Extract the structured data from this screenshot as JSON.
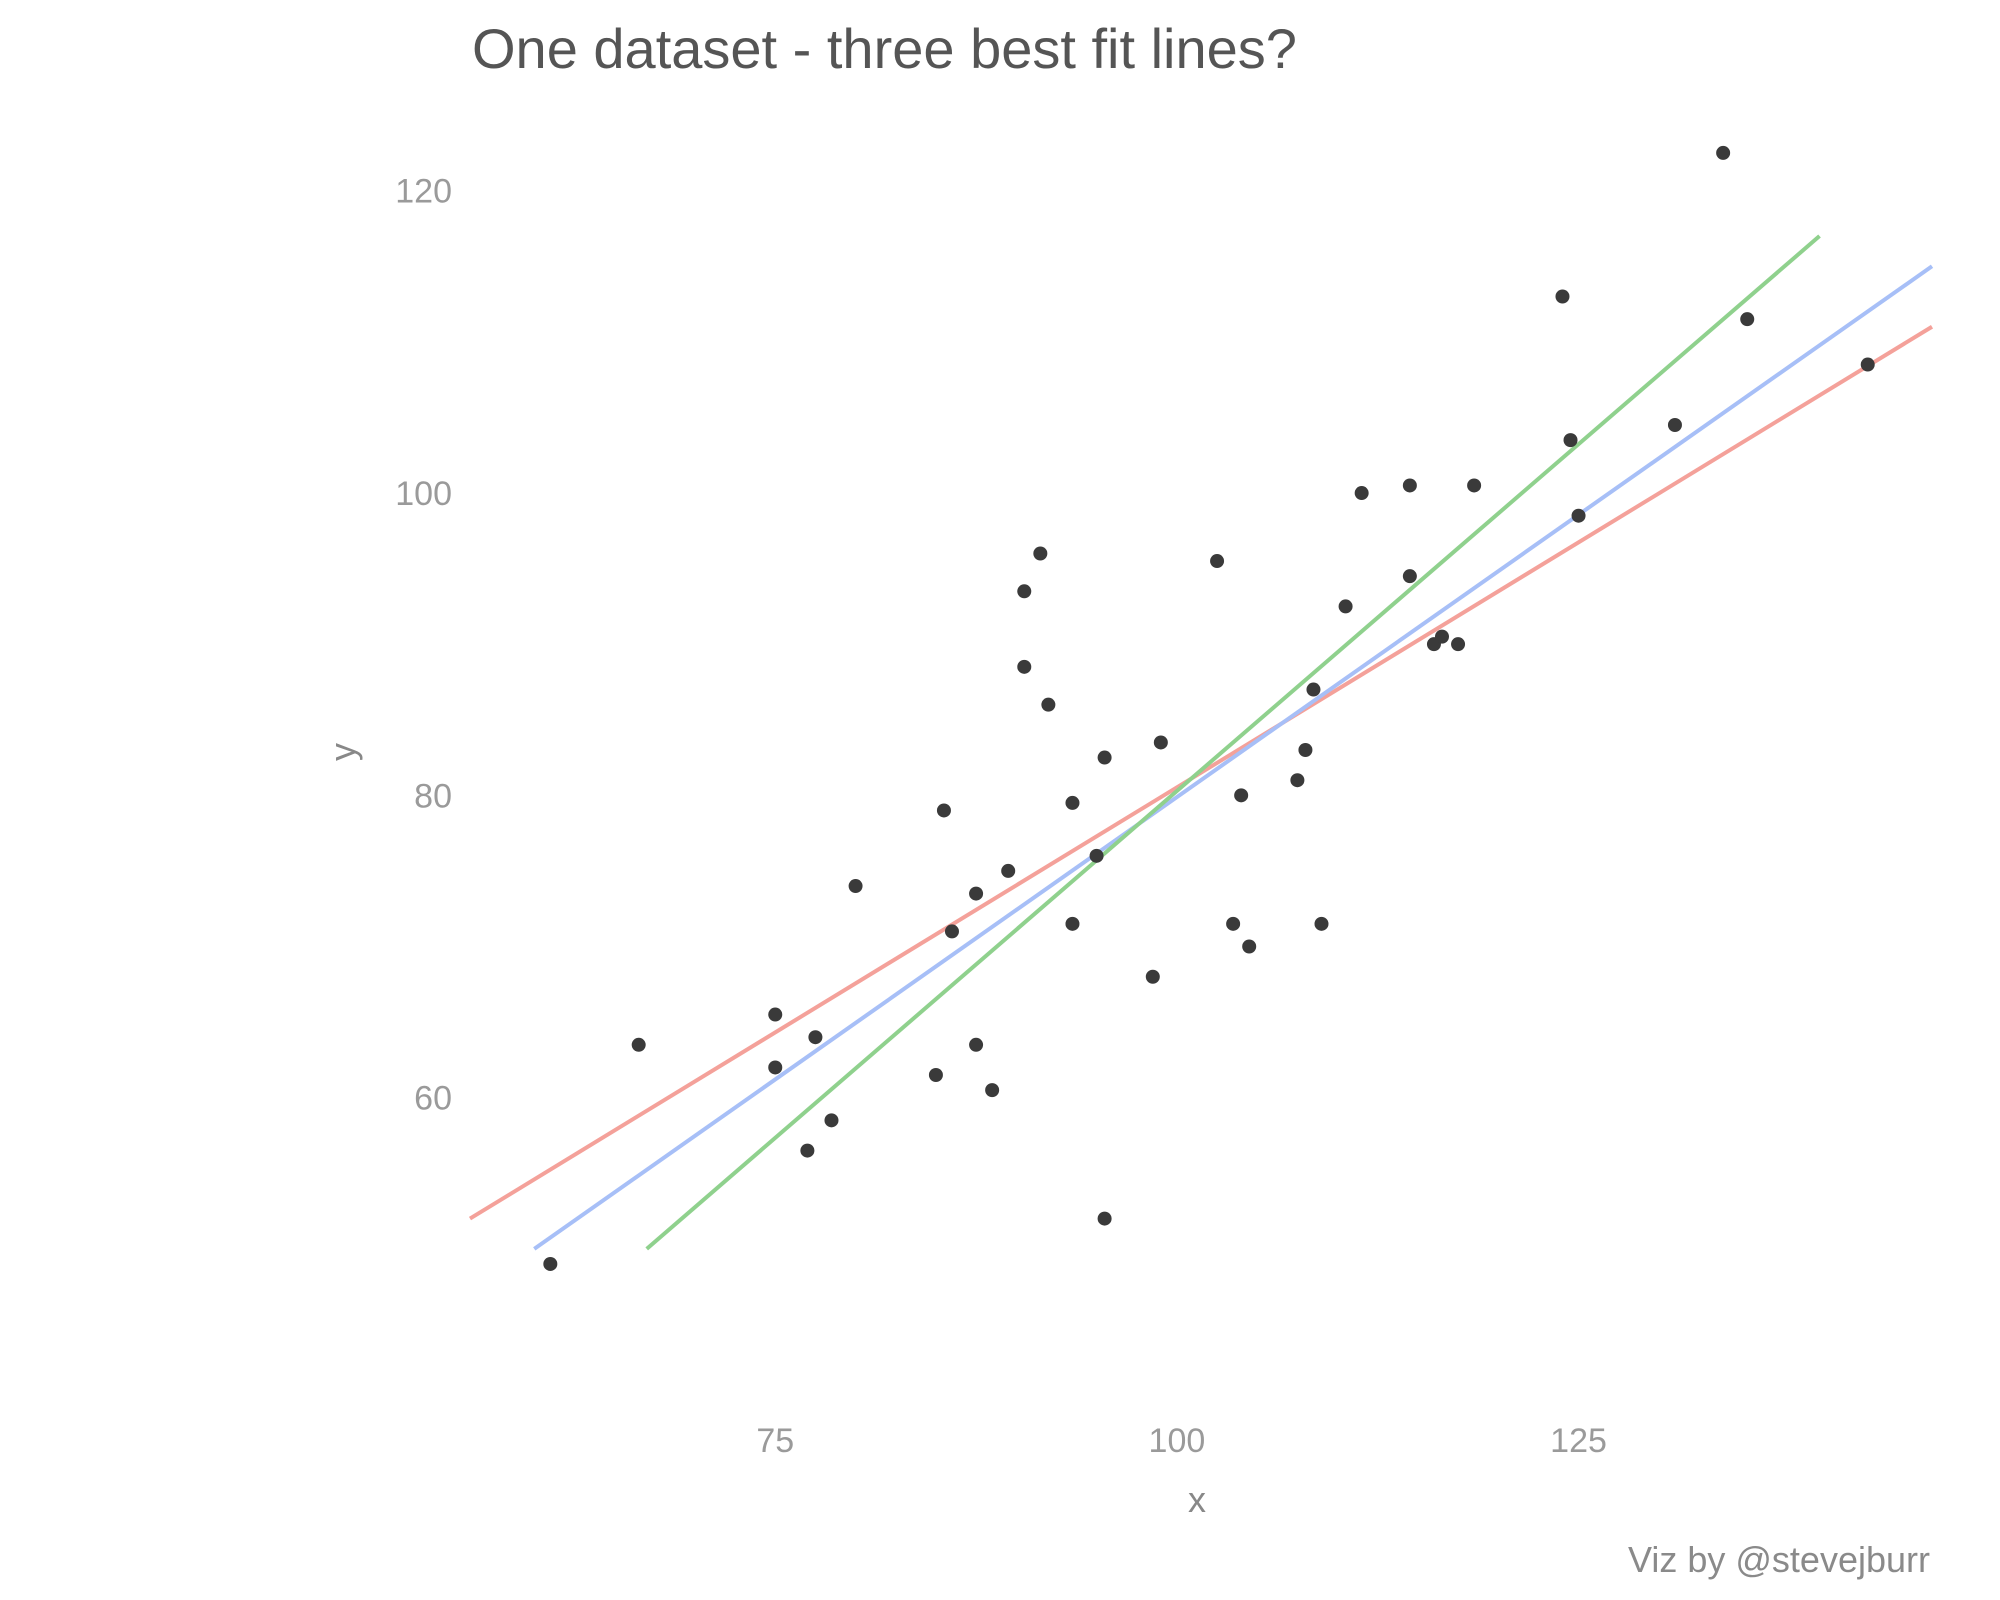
{
  "chart_data": {
    "type": "scatter",
    "title": "One dataset - three best fit lines?",
    "xlabel": "x",
    "ylabel": "y",
    "caption": "Viz by @stevejburr",
    "xlim": [
      56,
      147
    ],
    "ylim": [
      40,
      126
    ],
    "x_ticks": [
      "75",
      "100",
      "125"
    ],
    "y_ticks": [
      "60",
      "80",
      "100",
      "120"
    ],
    "grid": false,
    "points": [
      [
        61,
        49
      ],
      [
        66.5,
        63.5
      ],
      [
        75,
        65.5
      ],
      [
        75,
        62
      ],
      [
        77.5,
        64
      ],
      [
        77,
        56.5
      ],
      [
        78.5,
        58.5
      ],
      [
        80,
        74
      ],
      [
        85,
        61.5
      ],
      [
        85.5,
        79
      ],
      [
        86,
        71
      ],
      [
        87.5,
        73.5
      ],
      [
        88.5,
        60.5
      ],
      [
        87.5,
        63.5
      ],
      [
        89.5,
        75
      ],
      [
        90.5,
        93.5
      ],
      [
        90.5,
        88.5
      ],
      [
        91.5,
        96
      ],
      [
        92,
        86
      ],
      [
        93.5,
        79.5
      ],
      [
        93.5,
        71.5
      ],
      [
        95,
        76
      ],
      [
        95.5,
        52
      ],
      [
        95.5,
        82.5
      ],
      [
        98.5,
        68
      ],
      [
        99,
        83.5
      ],
      [
        102.5,
        95.5
      ],
      [
        103.5,
        71.5
      ],
      [
        104,
        80
      ],
      [
        104.5,
        70
      ],
      [
        107.5,
        81
      ],
      [
        108,
        83
      ],
      [
        108.5,
        87
      ],
      [
        109,
        71.5
      ],
      [
        110.5,
        92.5
      ],
      [
        111.5,
        100
      ],
      [
        114.5,
        100.5
      ],
      [
        114.5,
        94.5
      ],
      [
        116,
        90
      ],
      [
        116.5,
        90.5
      ],
      [
        117.5,
        90
      ],
      [
        118.5,
        100.5
      ],
      [
        124,
        113
      ],
      [
        124.5,
        103.5
      ],
      [
        125,
        98.5
      ],
      [
        131,
        104.5
      ],
      [
        134,
        122.5
      ],
      [
        135.5,
        111.5
      ],
      [
        143,
        108.5
      ]
    ],
    "series": [
      {
        "color": "#f4a19a",
        "line": [
          [
            56,
            52
          ],
          [
            147,
            111
          ]
        ]
      },
      {
        "color": "#a7bff7",
        "line": [
          [
            60,
            50
          ],
          [
            147,
            115
          ]
        ]
      },
      {
        "color": "#8fd18d",
        "line": [
          [
            67,
            50
          ],
          [
            140,
            117
          ]
        ]
      }
    ],
    "point_color": "#3a3a3a"
  }
}
